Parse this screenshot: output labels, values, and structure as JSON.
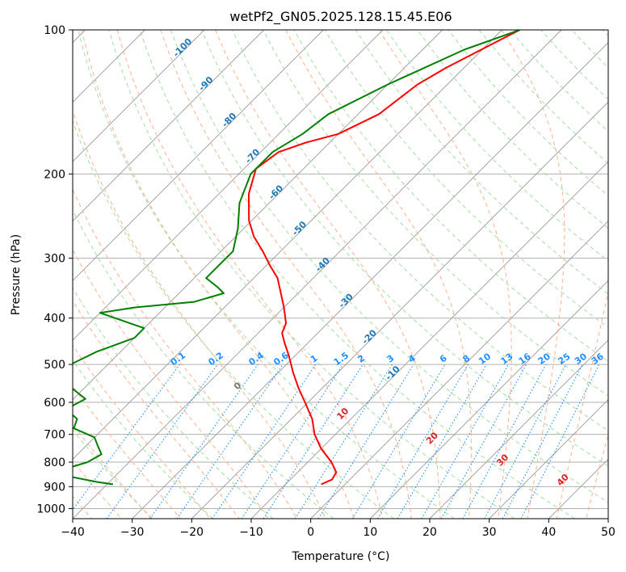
{
  "chart_data": {
    "type": "line",
    "title": "wetPf2_GN05.2025.128.15.45.E06",
    "xlabel": "Temperature (°C)",
    "ylabel": "Pressure (hPa)",
    "xlim": [
      -40,
      50
    ],
    "ylim_hpa": [
      1050,
      100
    ],
    "y_scale": "log",
    "grid": true,
    "x_ticks": [
      -40,
      -30,
      -20,
      -10,
      0,
      10,
      20,
      30,
      40,
      50
    ],
    "y_ticks": [
      100,
      200,
      300,
      400,
      500,
      600,
      700,
      800,
      900,
      1000
    ],
    "colors": {
      "temperature": "#ff0000",
      "dewpoint": "#008000",
      "isotherm_label": "#1f77b4",
      "mixing_ratio": "#1e90ff",
      "moist_adiabat_label": "#d62728",
      "moist_adiabat": "#ffb08a",
      "dry_adiabat": "#a0e0a0",
      "skew_grid": "#999999"
    },
    "series": [
      {
        "key": "temperature",
        "p": [
          100,
          120,
          130,
          150,
          165,
          172,
          180,
          195,
          220,
          250,
          270,
          290,
          310,
          330,
          350,
          380,
          410,
          430,
          450,
          480,
          520,
          560,
          600,
          650,
          700,
          750,
          800,
          840,
          870,
          890
        ],
        "t": [
          -47,
          -53,
          -55,
          -56.5,
          -60,
          -64,
          -67,
          -68,
          -65,
          -60.5,
          -57,
          -53,
          -49.5,
          -46,
          -43.5,
          -40,
          -37,
          -36,
          -34,
          -31,
          -27.5,
          -24,
          -20.5,
          -16.5,
          -13.5,
          -10,
          -6,
          -3.5,
          -3,
          -4
        ]
      },
      {
        "key": "dewpoint",
        "p": [
          100,
          110,
          130,
          150,
          165,
          180,
          200,
          230,
          260,
          290,
          310,
          330,
          345,
          355,
          370,
          380,
          390,
          420,
          440,
          470,
          510,
          540,
          590,
          620,
          650,
          680,
          710,
          740,
          770,
          800,
          830,
          860,
          880,
          890
        ],
        "t": [
          -47,
          -53,
          -60,
          -65,
          -66,
          -68,
          -68,
          -65,
          -61,
          -58,
          -58,
          -58,
          -54.5,
          -52.5,
          -56,
          -65,
          -70,
          -60,
          -60,
          -64,
          -67,
          -65,
          -58,
          -59.5,
          -56,
          -55,
          -50,
          -48,
          -46,
          -47,
          -50,
          -47,
          -42,
          -39
        ]
      }
    ],
    "isotherm_labels": [
      {
        "t": -100,
        "text": "-100"
      },
      {
        "t": -90,
        "text": "-90"
      },
      {
        "t": -80,
        "text": "-80"
      },
      {
        "t": -70,
        "text": "-70"
      },
      {
        "t": -60,
        "text": "-60"
      },
      {
        "t": -50,
        "text": "-50"
      },
      {
        "t": -40,
        "text": "-40"
      },
      {
        "t": -30,
        "text": "-30"
      },
      {
        "t": -20,
        "text": "-20"
      },
      {
        "t": -10,
        "text": "-10"
      }
    ],
    "mixing_ratios": [
      {
        "w": 0.1,
        "text": "0.1"
      },
      {
        "w": 0.2,
        "text": "0.2"
      },
      {
        "w": 0.4,
        "text": "0.4"
      },
      {
        "w": 0.6,
        "text": "0.6"
      },
      {
        "w": 1,
        "text": "1"
      },
      {
        "w": 1.5,
        "text": "1.5"
      },
      {
        "w": 2,
        "text": "2"
      },
      {
        "w": 3,
        "text": "3"
      },
      {
        "w": 4,
        "text": "4"
      },
      {
        "w": 6,
        "text": "6"
      },
      {
        "w": 8,
        "text": "8"
      },
      {
        "w": 10,
        "text": "10"
      },
      {
        "w": 13,
        "text": "13"
      },
      {
        "w": 16,
        "text": "16"
      },
      {
        "w": 20,
        "text": "20"
      },
      {
        "w": 25,
        "text": "25"
      },
      {
        "w": 30,
        "text": "30"
      },
      {
        "w": 36,
        "text": "36"
      }
    ],
    "moist_adiabat_labels": [
      {
        "theta_w": 0,
        "text": "0"
      },
      {
        "theta_w": 10,
        "text": "10"
      },
      {
        "theta_w": 20,
        "text": "20"
      },
      {
        "theta_w": 30,
        "text": "30"
      },
      {
        "theta_w": 40,
        "text": "40"
      }
    ]
  }
}
